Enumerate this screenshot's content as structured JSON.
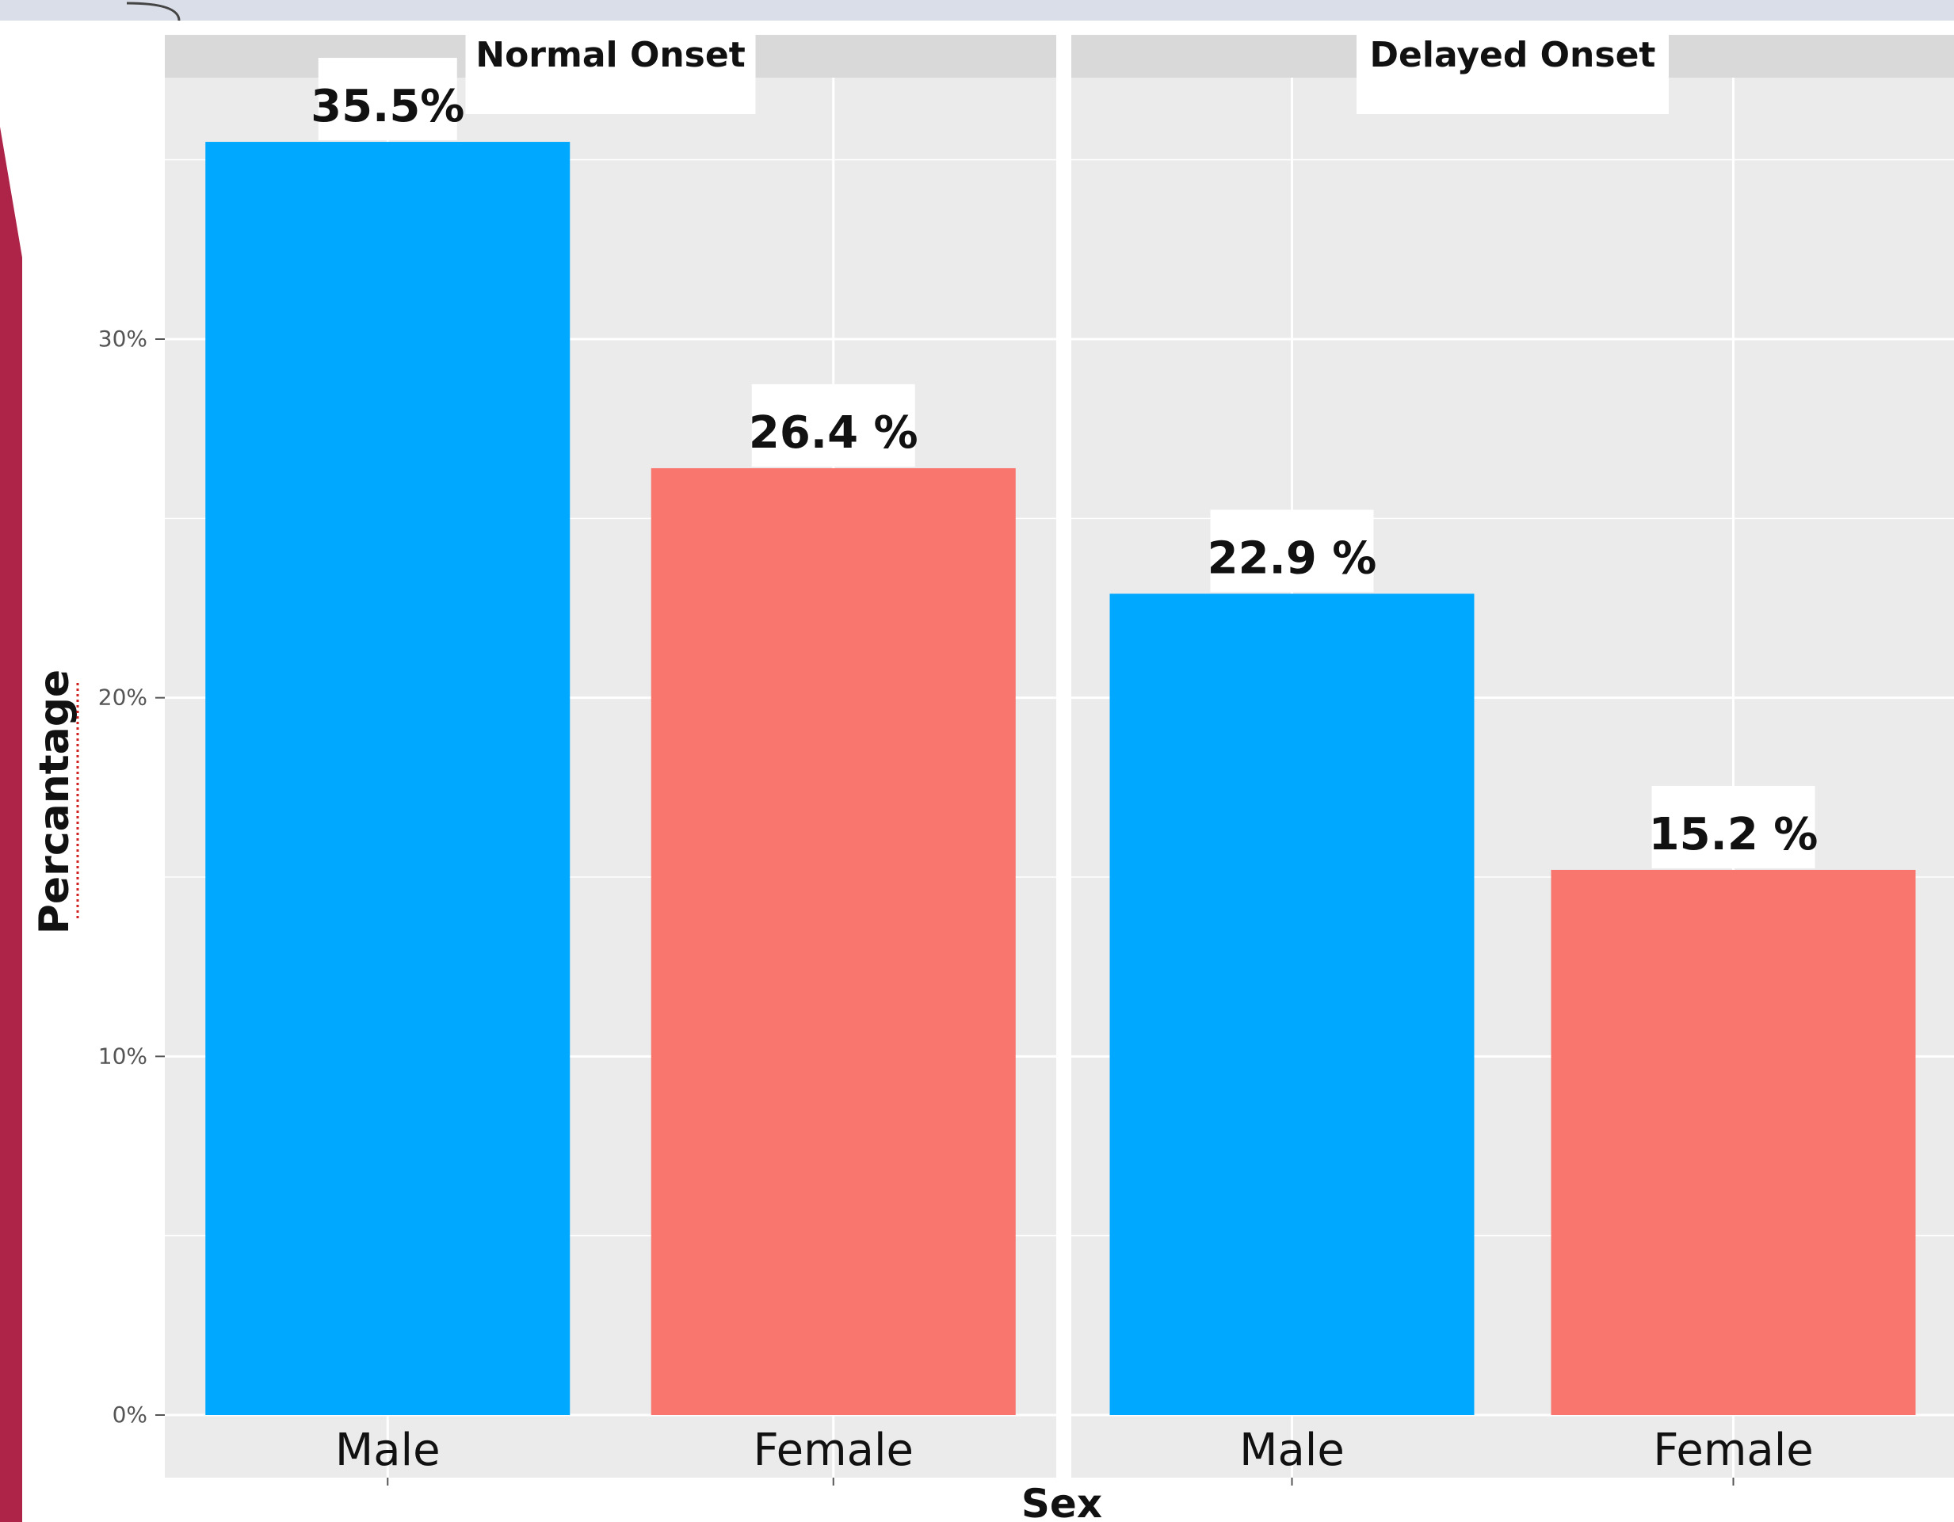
{
  "chart_data": {
    "type": "bar",
    "title": "",
    "xlabel": "Sex",
    "ylabel": "Percantage",
    "ylim": [
      0,
      38
    ],
    "yticks": [
      {
        "value": 0,
        "label": "0%"
      },
      {
        "value": 10,
        "label": "10%"
      },
      {
        "value": 20,
        "label": "20%"
      },
      {
        "value": 30,
        "label": "30%"
      }
    ],
    "grid": true,
    "legend": "none",
    "colors": {
      "Male": "#00a9ff",
      "Female": "#f8766d"
    },
    "panels": [
      {
        "strip": "Normal Onset",
        "categories": [
          "Male",
          "Female"
        ],
        "values": [
          35.5,
          26.4
        ],
        "labels": [
          "35.5%",
          "26.4 %"
        ]
      },
      {
        "strip": "Delayed Onset",
        "categories": [
          "Male",
          "Female"
        ],
        "values": [
          22.9,
          15.2
        ],
        "labels": [
          "22.9 %",
          "15.2 %"
        ]
      }
    ]
  }
}
